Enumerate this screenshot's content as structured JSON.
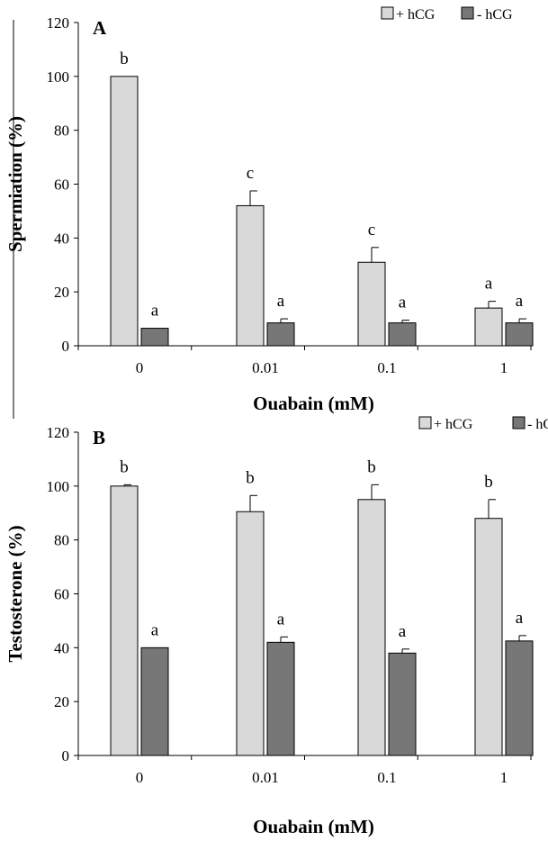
{
  "chart_data": [
    {
      "type": "bar",
      "panel_label": "A",
      "ylabel": "Spermiation (%)",
      "xlabel": "Ouabain (mM)",
      "ylim": [
        0,
        120
      ],
      "yticks": [
        0,
        20,
        40,
        60,
        80,
        100,
        120
      ],
      "categories": [
        "0",
        "0.01",
        "0.1",
        "1"
      ],
      "series": [
        {
          "name": "+ hCG",
          "color": "#d9d9d9",
          "values": [
            100,
            52,
            31,
            14
          ],
          "errors": [
            0,
            5.5,
            5.5,
            2.5
          ],
          "labels": [
            "b",
            "c",
            "c",
            "a"
          ]
        },
        {
          "name": "- hCG",
          "color": "#777777",
          "values": [
            6.5,
            8.5,
            8.5,
            8.5
          ],
          "errors": [
            0,
            1.5,
            1,
            1.5
          ],
          "labels": [
            "a",
            "a",
            "a",
            "a"
          ]
        }
      ],
      "legend": "top-right",
      "grid": false
    },
    {
      "type": "bar",
      "panel_label": "B",
      "ylabel": "Testosterone (%)",
      "xlabel": "Ouabain (mM)",
      "ylim": [
        0,
        120
      ],
      "yticks": [
        0,
        20,
        40,
        60,
        80,
        100,
        120
      ],
      "categories": [
        "0",
        "0.01",
        "0.1",
        "1"
      ],
      "series": [
        {
          "name": "+ hCG",
          "color": "#d9d9d9",
          "values": [
            100,
            90.5,
            95,
            88
          ],
          "errors": [
            0.5,
            6,
            5.5,
            7
          ],
          "labels": [
            "b",
            "b",
            "b",
            "b"
          ]
        },
        {
          "name": "- hCG",
          "color": "#777777",
          "values": [
            40,
            42,
            38,
            42.5
          ],
          "errors": [
            0,
            2,
            1.5,
            2
          ],
          "labels": [
            "a",
            "a",
            "a",
            "a"
          ]
        }
      ],
      "legend": "top-right",
      "grid": false
    }
  ]
}
